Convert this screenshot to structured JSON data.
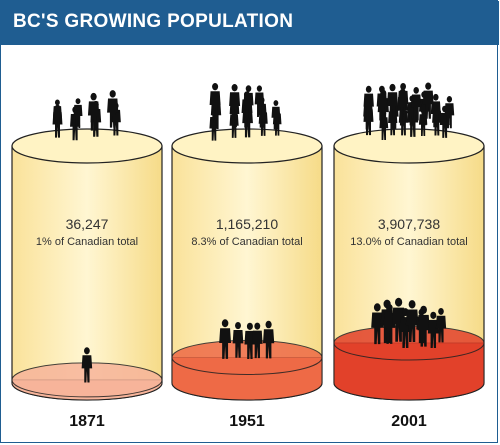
{
  "header": {
    "title": "BC'S GROWING POPULATION"
  },
  "colors": {
    "title_bar": "#1f5d91",
    "cylinder_top": "#fff3c4",
    "cylinder_body": "#fae8a4",
    "fill_1871": "#f7b49a",
    "fill_1951": "#ee6a46",
    "fill_2001": "#e2412a",
    "figure": "#111111"
  },
  "chart_data": {
    "type": "bar",
    "categories": [
      "1871",
      "1951",
      "2001"
    ],
    "series": [
      {
        "values": [
          36247,
          1165210,
          3907738
        ]
      }
    ],
    "value_labels": [
      "36,247",
      "1,165,210",
      "3,907,738"
    ],
    "share_labels": [
      "1% of  Canadian total",
      "8.3% of Canadian total",
      "13.0% of Canadian total"
    ],
    "share_percent": [
      1,
      8.3,
      13.0
    ],
    "figures_inside": [
      1,
      5,
      10
    ],
    "figures_on_top": [
      8,
      14,
      22
    ],
    "title": "BC'S GROWING POPULATION",
    "xlabel": "",
    "ylabel": "",
    "grid": false,
    "legend": "none"
  }
}
